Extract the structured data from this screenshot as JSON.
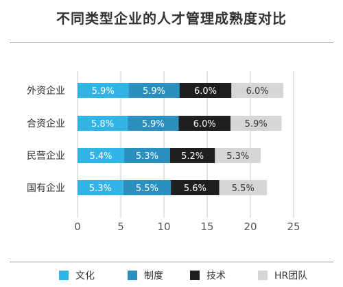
{
  "chart_data": {
    "type": "bar",
    "orientation": "horizontal",
    "stacked": true,
    "title": "不同类型企业的人才管理成熟度对比",
    "categories": [
      "外资企业",
      "合资企业",
      "民营企业",
      "国有企业"
    ],
    "series": [
      {
        "name": "文化",
        "color": "#33b4e6",
        "label_color": "#ffffff",
        "values": [
          5.9,
          5.8,
          5.4,
          5.3
        ]
      },
      {
        "name": "制度",
        "color": "#2b8fbf",
        "label_color": "#ffffff",
        "values": [
          5.9,
          5.9,
          5.3,
          5.5
        ]
      },
      {
        "name": "技术",
        "color": "#1f1f1f",
        "label_color": "#ffffff",
        "values": [
          6.0,
          6.0,
          5.2,
          5.6
        ]
      },
      {
        "name": "HR团队",
        "color": "#d6d6d6",
        "label_color": "#333333",
        "values": [
          6.0,
          5.9,
          5.3,
          5.5
        ]
      }
    ],
    "value_labels": [
      [
        "5.9%",
        "5.8%",
        "5.4%",
        "5.3%"
      ],
      [
        "5.9%",
        "5.9%",
        "5.3%",
        "5.5%"
      ],
      [
        "6.0%",
        "6.0%",
        "5.2%",
        "5.6%"
      ],
      [
        "6.0%",
        "5.9%",
        "5.3%",
        "5.5%"
      ]
    ],
    "xlim": [
      0,
      25
    ],
    "xticks": [
      "0",
      "5",
      "10",
      "15",
      "20",
      "25"
    ],
    "grid": "vertical",
    "legend_position": "bottom"
  }
}
